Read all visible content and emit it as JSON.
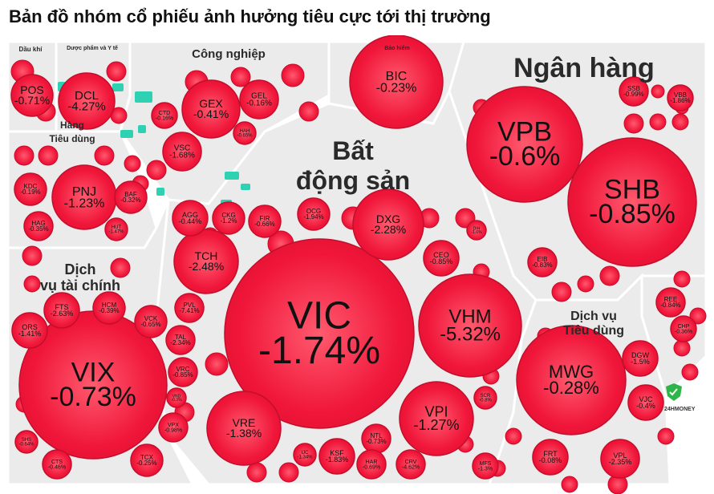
{
  "title": "Bản đồ nhóm cổ phiếu ảnh hưởng tiêu cực tới thị trường",
  "logo_text": "24HMONEY",
  "colors": {
    "negative": "#f0163a",
    "negative_light": "#ff5a6e",
    "positive": "#2ed1b1",
    "sector_bg": "#ebebeb",
    "frame": "#ffffff",
    "text": "#111111"
  },
  "chart_data": {
    "type": "treemap",
    "title": "Bản đồ nhóm cổ phiếu ảnh hưởng tiêu cực tới thị trường",
    "unit": "%",
    "sectors": [
      {
        "name": "Ngân hàng",
        "stocks": [
          {
            "ticker": "VPB",
            "change": "-0.6%"
          },
          {
            "ticker": "SHB",
            "change": "-0.85%"
          },
          {
            "ticker": "SSB",
            "change": "-0.99%"
          },
          {
            "ticker": "VBB",
            "change": "-1.86%"
          },
          {
            "ticker": "EIB",
            "change": "-0.83%"
          }
        ]
      },
      {
        "name": "Bất động sản",
        "stocks": [
          {
            "ticker": "VIC",
            "change": "-1.74%"
          },
          {
            "ticker": "VHM",
            "change": "-5.32%"
          },
          {
            "ticker": "DXG",
            "change": "-2.28%"
          },
          {
            "ticker": "TCH",
            "change": "-2.48%"
          },
          {
            "ticker": "VPI",
            "change": "-1.27%"
          },
          {
            "ticker": "VRE",
            "change": "-1.38%"
          },
          {
            "ticker": "CEO",
            "change": "-0.85%"
          },
          {
            "ticker": "AGG",
            "change": "-0.44%"
          },
          {
            "ticker": "CKG",
            "change": "-1.2%"
          },
          {
            "ticker": "FIR",
            "change": "-0.66%"
          },
          {
            "ticker": "OCG",
            "change": "-1.94%"
          },
          {
            "ticker": "PVL",
            "change": "-7.41%"
          },
          {
            "ticker": "TAL",
            "change": "-2.34%"
          },
          {
            "ticker": "VRC",
            "change": "-0.85%"
          },
          {
            "ticker": "KSF",
            "change": "-1.83%"
          },
          {
            "ticker": "NTL",
            "change": "-0.73%"
          },
          {
            "ticker": "HAR",
            "change": "-0.69%"
          },
          {
            "ticker": "CRV",
            "change": "-4.62%"
          },
          {
            "ticker": "IJC",
            "change": "-1.34%"
          },
          {
            "ticker": "DIH",
            "change": "-1.6%"
          },
          {
            "ticker": "SCR",
            "change": "-0.8%"
          }
        ]
      },
      {
        "name": "Dịch vụ tài chính",
        "stocks": [
          {
            "ticker": "VIX",
            "change": "-0.73%"
          },
          {
            "ticker": "ORS",
            "change": "-1.41%"
          },
          {
            "ticker": "FTS",
            "change": "-2.63%"
          },
          {
            "ticker": "HCM",
            "change": "-0.39%"
          },
          {
            "ticker": "VCK",
            "change": "-0.65%"
          },
          {
            "ticker": "VPX",
            "change": "-0.98%"
          },
          {
            "ticker": "TCX",
            "change": "-0.25%"
          },
          {
            "ticker": "CTS",
            "change": "-0.46%"
          },
          {
            "ticker": "SHS",
            "change": "-0.64%"
          },
          {
            "ticker": "VND",
            "change": "-0.3%"
          }
        ]
      },
      {
        "name": "Dịch vụ Tiêu dùng",
        "stocks": [
          {
            "ticker": "MWG",
            "change": "-0.28%"
          },
          {
            "ticker": "DGW",
            "change": "-1.5%"
          },
          {
            "ticker": "VJC",
            "change": "-0.4%"
          },
          {
            "ticker": "FRT",
            "change": "-0.08%"
          },
          {
            "ticker": "VPL",
            "change": "-2.35%"
          },
          {
            "ticker": "MFS",
            "change": "-1.3%"
          }
        ]
      },
      {
        "name": "Công nghiệp",
        "stocks": [
          {
            "ticker": "GEX",
            "change": "-0.41%"
          },
          {
            "ticker": "GEL",
            "change": "-0.16%"
          },
          {
            "ticker": "VSC",
            "change": "-1.68%"
          },
          {
            "ticker": "CTD",
            "change": "-0.16%"
          },
          {
            "ticker": "HAH",
            "change": "-0.65%"
          }
        ]
      },
      {
        "name": "Hàng Tiêu dùng",
        "stocks": [
          {
            "ticker": "PNJ",
            "change": "-1.23%"
          },
          {
            "ticker": "KDC",
            "change": "-0.19%"
          },
          {
            "ticker": "BAF",
            "change": "-0.32%"
          },
          {
            "ticker": "HAG",
            "change": "-0.35%"
          },
          {
            "ticker": "HUT",
            "change": "-1.47%"
          }
        ]
      },
      {
        "name": "Dược phẩm và Y tế",
        "stocks": [
          {
            "ticker": "DCL",
            "change": "-4.27%"
          }
        ]
      },
      {
        "name": "Dầu khí",
        "stocks": [
          {
            "ticker": "POS",
            "change": "-0.71%"
          }
        ]
      },
      {
        "name": "Bảo hiểm",
        "stocks": [
          {
            "ticker": "BIC",
            "change": "-0.23%"
          }
        ]
      },
      {
        "name": "",
        "stocks": [
          {
            "ticker": "REE",
            "change": "-0.84%"
          },
          {
            "ticker": "CHP",
            "change": "-0.36%"
          }
        ]
      }
    ]
  }
}
